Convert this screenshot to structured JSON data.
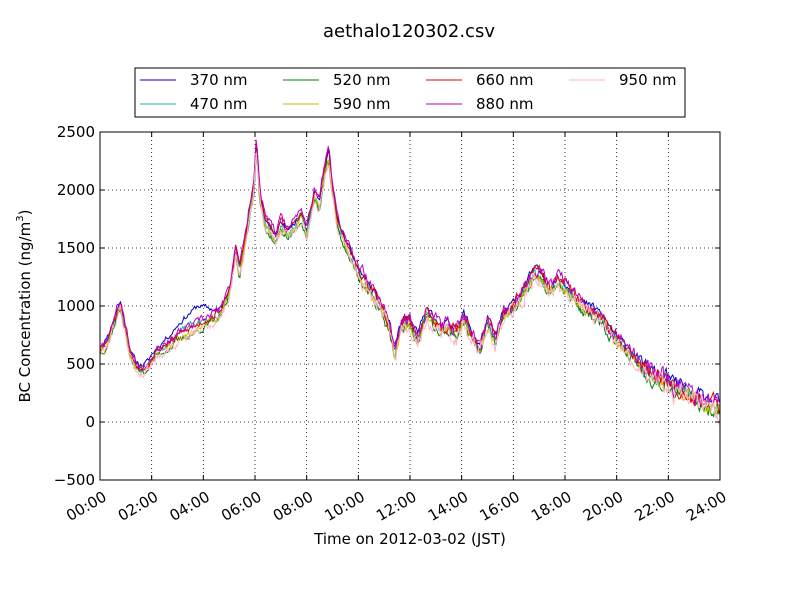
{
  "chart_data": {
    "type": "line",
    "title": "aethalo120302.csv",
    "xlabel": "Time on 2012-03-02 (JST)",
    "ylabel": "BC Concentration (ng/m",
    "ylabel_superscript": "3",
    "ylabel_close": ")",
    "xlim": [
      0,
      24
    ],
    "ylim": [
      -500,
      2500
    ],
    "x_ticks": [
      0,
      2,
      4,
      6,
      8,
      10,
      12,
      14,
      16,
      18,
      20,
      22,
      24
    ],
    "x_tick_labels": [
      "00:00",
      "02:00",
      "04:00",
      "06:00",
      "08:00",
      "10:00",
      "12:00",
      "14:00",
      "16:00",
      "18:00",
      "20:00",
      "22:00",
      "24:00"
    ],
    "y_ticks": [
      -500,
      0,
      500,
      1000,
      1500,
      2000,
      2500
    ],
    "y_tick_labels": [
      "−500",
      "0",
      "500",
      "1000",
      "1500",
      "2000",
      "2500"
    ],
    "grid": true,
    "legend_position": "top-center-above",
    "legend_columns": 4,
    "x_unit": "hours",
    "base_profile": {
      "x": [
        0,
        0.2,
        0.4,
        0.6,
        0.8,
        1.0,
        1.2,
        1.4,
        1.6,
        1.8,
        2.0,
        2.2,
        2.5,
        2.8,
        3.0,
        3.3,
        3.6,
        4.0,
        4.3,
        4.6,
        4.8,
        5.0,
        5.1,
        5.25,
        5.4,
        5.6,
        5.8,
        5.95,
        6.05,
        6.2,
        6.4,
        6.6,
        6.8,
        7.0,
        7.3,
        7.6,
        7.8,
        8.0,
        8.3,
        8.5,
        8.7,
        8.85,
        9.0,
        9.2,
        9.5,
        9.8,
        10.0,
        10.3,
        10.6,
        10.9,
        11.2,
        11.4,
        11.6,
        11.8,
        12.0,
        12.3,
        12.6,
        12.9,
        13.2,
        13.5,
        13.8,
        14.1,
        14.4,
        14.7,
        15.0,
        15.3,
        15.6,
        15.9,
        16.2,
        16.5,
        16.8,
        17.1,
        17.4,
        17.7,
        18.0,
        18.3,
        18.6,
        18.9,
        19.2,
        19.5,
        19.8,
        20.1,
        20.4,
        20.7,
        21.0,
        21.3,
        21.6,
        21.9,
        22.2,
        22.5,
        22.8,
        23.1,
        23.4,
        23.7,
        24.0
      ],
      "y": [
        620,
        660,
        760,
        900,
        1000,
        780,
        560,
        480,
        450,
        470,
        540,
        600,
        640,
        680,
        720,
        760,
        790,
        840,
        880,
        920,
        990,
        1110,
        1230,
        1480,
        1290,
        1520,
        1820,
        2000,
        2380,
        1900,
        1700,
        1640,
        1560,
        1680,
        1620,
        1700,
        1780,
        1620,
        1950,
        1860,
        2150,
        2300,
        1980,
        1700,
        1520,
        1380,
        1280,
        1180,
        1080,
        980,
        820,
        560,
        780,
        860,
        840,
        700,
        940,
        860,
        780,
        820,
        760,
        900,
        740,
        620,
        860,
        700,
        900,
        960,
        1040,
        1160,
        1280,
        1240,
        1120,
        1200,
        1160,
        1080,
        1000,
        960,
        940,
        860,
        760,
        660,
        620,
        560,
        460,
        420,
        360,
        380,
        300,
        280,
        220,
        200,
        160,
        140,
        120
      ]
    },
    "series": [
      {
        "name": "370 nm",
        "color": "#0000cc",
        "scale": 1.0,
        "offset": 40,
        "noise": 45,
        "seed": 11,
        "bump": {
          "from": 2.2,
          "to": 4.6,
          "peak": 3.8,
          "amount": 150
        }
      },
      {
        "name": "470 nm",
        "color": "#20b2aa",
        "scale": 1.0,
        "offset": 0,
        "noise": 45,
        "seed": 23,
        "bump": {
          "from": 2.2,
          "to": 4.4,
          "peak": 3.5,
          "amount": 60
        }
      },
      {
        "name": "520 nm",
        "color": "#008000",
        "scale": 0.99,
        "offset": -20,
        "noise": 55,
        "seed": 37
      },
      {
        "name": "590 nm",
        "color": "#bfbf00",
        "scale": 1.0,
        "offset": -10,
        "noise": 50,
        "seed": 41
      },
      {
        "name": "660 nm",
        "color": "#e00000",
        "scale": 1.02,
        "offset": 10,
        "noise": 60,
        "seed": 53
      },
      {
        "name": "880 nm",
        "color": "#bb00bb",
        "scale": 1.03,
        "offset": 20,
        "noise": 70,
        "seed": 67
      },
      {
        "name": "950 nm",
        "color": "#ffb6c1",
        "scale": 1.0,
        "offset": -30,
        "noise": 85,
        "seed": 79
      }
    ]
  }
}
